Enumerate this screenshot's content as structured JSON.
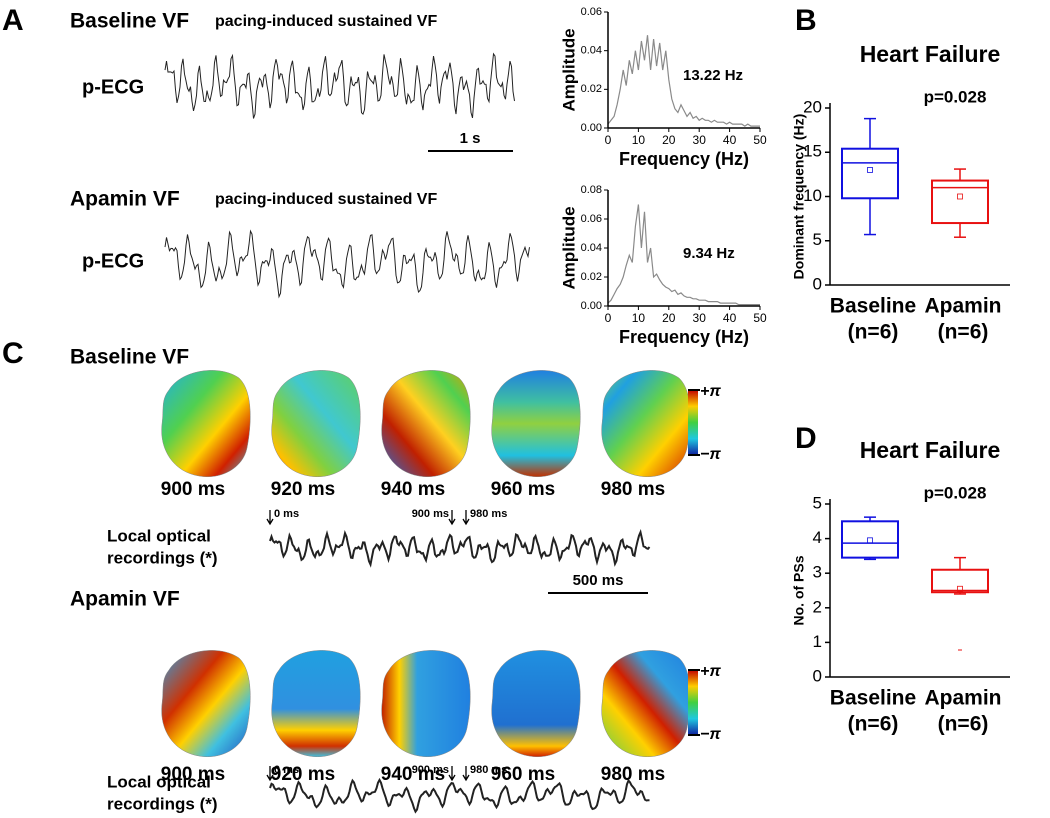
{
  "panel_a": {
    "letter": "A",
    "scale_bar": "1 s",
    "rows": [
      {
        "title": "Baseline VF",
        "subtitle": "pacing-induced sustained VF",
        "lead": "p-ECG"
      },
      {
        "title": "Apamin VF",
        "subtitle": "pacing-induced sustained VF",
        "lead": "p-ECG"
      }
    ]
  },
  "panel_b": {
    "letter": "B"
  },
  "panel_c": {
    "letter": "C",
    "scale_bar": "500 ms",
    "colorbar": [
      "+π",
      "−π"
    ],
    "rows": [
      {
        "title": "Baseline VF",
        "times": [
          "900 ms",
          "920 ms",
          "940 ms",
          "960 ms",
          "980 ms"
        ],
        "recording_label": [
          "Local optical",
          "recordings (*)"
        ],
        "markers": [
          "0 ms",
          "900 ms",
          "980 ms"
        ]
      },
      {
        "title": "Apamin VF",
        "times": [
          "900 ms",
          "920 ms",
          "940 ms",
          "960 ms",
          "980 ms"
        ],
        "recording_label": [
          "Local optical",
          "recordings (*)"
        ],
        "markers": [
          "0 ms",
          "900 ms",
          "980 ms"
        ]
      }
    ]
  },
  "panel_d": {
    "letter": "D"
  },
  "chart_data": [
    {
      "type": "line",
      "xlabel": "Frequency (Hz)",
      "ylabel": "Amplitude",
      "annotation": "13.22 Hz",
      "x": [
        0,
        1,
        2,
        3,
        4,
        5,
        6,
        7,
        8,
        9,
        10,
        11,
        12,
        13,
        14,
        15,
        16,
        17,
        18,
        19,
        20,
        21,
        22,
        23,
        24,
        25,
        26,
        27,
        28,
        29,
        30,
        31,
        32,
        33,
        34,
        35,
        36,
        37,
        38,
        39,
        40,
        41,
        42,
        43,
        44,
        45,
        46,
        47,
        48,
        49,
        50
      ],
      "series": [
        {
          "color": "#8a8a8a",
          "values": [
            0.002,
            0.004,
            0.006,
            0.012,
            0.02,
            0.03,
            0.022,
            0.035,
            0.028,
            0.04,
            0.03,
            0.045,
            0.035,
            0.048,
            0.03,
            0.046,
            0.032,
            0.044,
            0.03,
            0.04,
            0.025,
            0.015,
            0.01,
            0.008,
            0.012,
            0.009,
            0.006,
            0.008,
            0.005,
            0.006,
            0.004,
            0.005,
            0.004,
            0.004,
            0.003,
            0.004,
            0.003,
            0.003,
            0.003,
            0.002,
            0.003,
            0.002,
            0.002,
            0.002,
            0.002,
            0.001,
            0.002,
            0.001,
            0.001,
            0.001,
            0.001
          ]
        }
      ],
      "xlim": [
        0,
        50
      ],
      "xticks": [
        0,
        10,
        20,
        30,
        40,
        50
      ],
      "ylim": [
        0,
        0.06
      ],
      "yticks": [
        {
          "value": 0,
          "label": "0.00"
        },
        0.02,
        0.04,
        0.06
      ]
    },
    {
      "type": "line",
      "xlabel": "Frequency (Hz)",
      "ylabel": "Amplitude",
      "annotation": "9.34 Hz",
      "x": [
        0,
        1,
        2,
        3,
        4,
        5,
        6,
        7,
        8,
        9,
        10,
        11,
        12,
        13,
        14,
        15,
        16,
        17,
        18,
        19,
        20,
        21,
        22,
        23,
        24,
        25,
        26,
        27,
        28,
        29,
        30,
        31,
        32,
        33,
        34,
        35,
        36,
        37,
        38,
        39,
        40,
        41,
        42,
        43,
        44,
        45,
        46,
        47,
        48,
        49,
        50
      ],
      "series": [
        {
          "color": "#8a8a8a",
          "values": [
            0.002,
            0.004,
            0.008,
            0.012,
            0.015,
            0.02,
            0.028,
            0.035,
            0.03,
            0.055,
            0.07,
            0.04,
            0.065,
            0.03,
            0.04,
            0.02,
            0.022,
            0.018,
            0.015,
            0.013,
            0.012,
            0.01,
            0.011,
            0.008,
            0.009,
            0.007,
            0.006,
            0.006,
            0.005,
            0.005,
            0.004,
            0.004,
            0.004,
            0.003,
            0.003,
            0.003,
            0.003,
            0.002,
            0.002,
            0.002,
            0.002,
            0.002,
            0.002,
            0.001,
            0.001,
            0.001,
            0.001,
            0.001,
            0.001,
            0.001,
            0.001
          ]
        }
      ],
      "xlim": [
        0,
        50
      ],
      "xticks": [
        0,
        10,
        20,
        30,
        40,
        50
      ],
      "ylim": [
        0,
        0.08
      ],
      "yticks": [
        {
          "value": 0,
          "label": "0.00"
        },
        0.02,
        0.04,
        0.06,
        0.08
      ]
    },
    {
      "type": "box",
      "title": "Heart Failure",
      "annotation": "p=0.028",
      "ylabel": "Dominant frequency (Hz)",
      "categories": [
        "Baseline",
        "Apamin"
      ],
      "sublabels": [
        "(n=6)",
        "(n=6)"
      ],
      "colors": [
        "#1010e0",
        "#e81010"
      ],
      "boxes": [
        {
          "min": 5.7,
          "q1": 9.8,
          "median": 13.8,
          "q3": 15.4,
          "max": 18.8,
          "mean": 13.0
        },
        {
          "min": 5.4,
          "q1": 7.0,
          "median": 11.0,
          "q3": 11.8,
          "max": 13.1,
          "mean": 10.0
        }
      ],
      "ylim": [
        0,
        20
      ],
      "yticks": [
        0,
        5,
        10,
        15,
        20
      ]
    },
    {
      "type": "box",
      "title": "Heart Failure",
      "annotation": "p=0.028",
      "ylabel": "No. of PSs",
      "categories": [
        "Baseline",
        "Apamin"
      ],
      "sublabels": [
        "(n=6)",
        "(n=6)"
      ],
      "colors": [
        "#1010e0",
        "#e81010"
      ],
      "boxes": [
        {
          "min": 3.4,
          "q1": 3.45,
          "median": 3.87,
          "q3": 4.5,
          "max": 4.62,
          "mean": 3.95
        },
        {
          "min": 2.4,
          "q1": 2.45,
          "median": 2.5,
          "q3": 3.1,
          "max": 3.45,
          "mean": 2.55,
          "outliers": [
            0.78
          ]
        }
      ],
      "ylim": [
        0,
        5
      ],
      "yticks": [
        0,
        1,
        2,
        3,
        4,
        5
      ]
    }
  ]
}
